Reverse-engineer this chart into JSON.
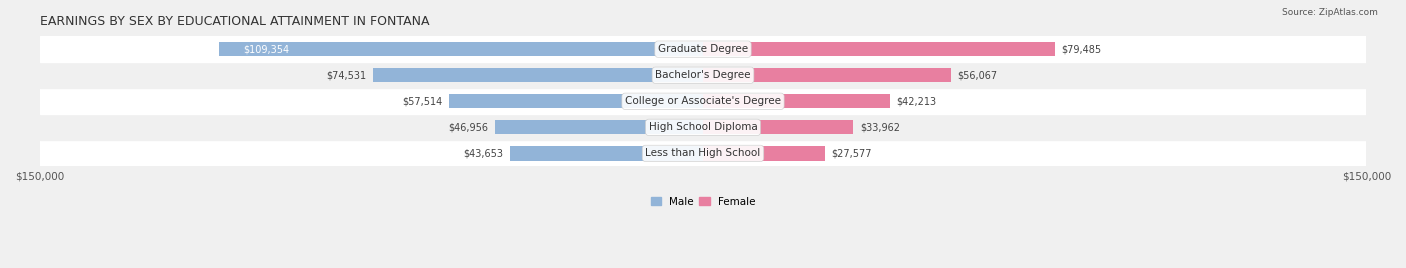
{
  "title": "EARNINGS BY SEX BY EDUCATIONAL ATTAINMENT IN FONTANA",
  "source": "Source: ZipAtlas.com",
  "categories": [
    "Less than High School",
    "High School Diploma",
    "College or Associate's Degree",
    "Bachelor's Degree",
    "Graduate Degree"
  ],
  "male_values": [
    43653,
    46956,
    57514,
    74531,
    109354
  ],
  "female_values": [
    27577,
    33962,
    42213,
    56067,
    79485
  ],
  "male_color": "#92b4d8",
  "female_color": "#e87fa0",
  "male_label": "Male",
  "female_label": "Female",
  "max_value": 150000,
  "bar_height": 0.55,
  "bg_color": "#f0f0f0",
  "row_colors": [
    "#ffffff",
    "#f0f0f0"
  ],
  "title_fontsize": 9,
  "label_fontsize": 7.5,
  "tick_fontsize": 7.5,
  "value_fontsize": 7.0
}
